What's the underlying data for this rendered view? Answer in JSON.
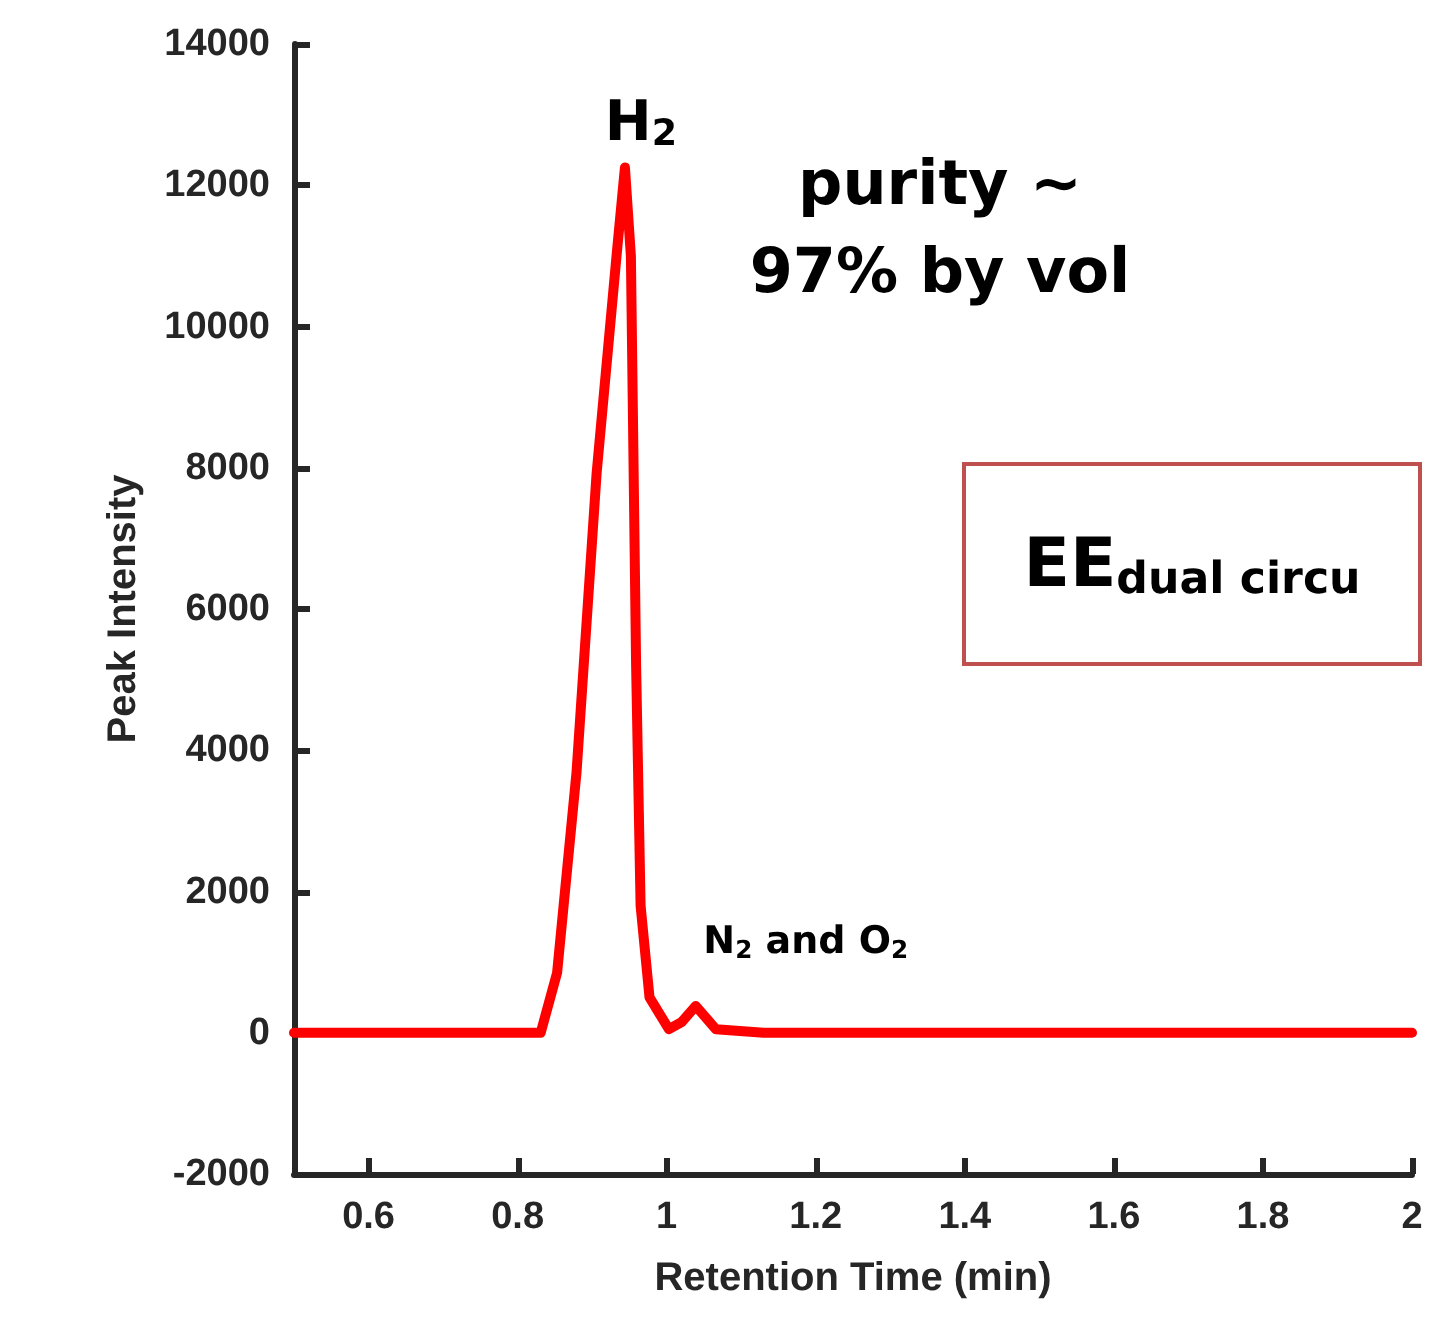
{
  "chart_data": {
    "type": "line",
    "xlabel": "Retention Time (min)",
    "ylabel": "Peak Intensity",
    "x": [
      0.5,
      0.6,
      0.7,
      0.8,
      0.831,
      0.853,
      0.879,
      0.906,
      0.933,
      0.944,
      0.952,
      0.959,
      0.965,
      0.977,
      1.003,
      1.02,
      1.039,
      1.066,
      1.13,
      1.3,
      1.5,
      1.7,
      1.9,
      2.0
    ],
    "series": [
      {
        "color": "#ff0000",
        "values": [
          0,
          0,
          0,
          0,
          0,
          850,
          3680,
          7920,
          11030,
          12250,
          11000,
          5200,
          1800,
          500,
          50,
          150,
          380,
          50,
          0,
          0,
          0,
          0,
          0,
          0
        ]
      }
    ],
    "xlim": [
      0.5,
      2
    ],
    "xticks": [
      0.6,
      0.8,
      1,
      1.2,
      1.4,
      1.6,
      1.8,
      2
    ],
    "ylim": [
      -2000,
      14000
    ],
    "yticks": [
      -2000,
      0,
      2000,
      4000,
      6000,
      8000,
      10000,
      12000,
      14000
    ],
    "grid": false,
    "marker": "none",
    "line_style": "solid",
    "annotations": [
      {
        "text": "H$_{2}$",
        "x": 0.944,
        "y": 12250
      },
      {
        "text": "N$_{2}$ and O$_{2}$",
        "x": 1.039,
        "y": 380
      },
      "purity ~\n97% by vol",
      "EE$_{dual circu}$"
    ]
  }
}
